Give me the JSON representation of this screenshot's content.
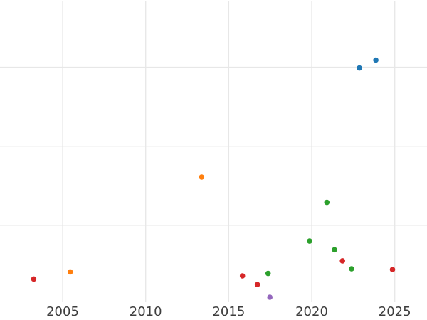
{
  "chart_data": {
    "type": "scatter",
    "title": "",
    "subtitle": "",
    "xlabel": "",
    "ylabel": "",
    "x_tick_labels": [
      "2005",
      "2010",
      "2015",
      "2020",
      "2025"
    ],
    "x_ticks": [
      2005,
      2010,
      2015,
      2020,
      2025
    ],
    "y_gridline_values": [
      1,
      2,
      3
    ],
    "y_tick_labels_visible": false,
    "xlim": [
      2001.23,
      2026.94
    ],
    "ylim": [
      0,
      3.85
    ],
    "grid": true,
    "legend_position": "none",
    "colors": {
      "background": "#ffffff",
      "gridline": "#e7e7e7",
      "tick_label": "#3d3d3d",
      "series_blue": "#1f77b4",
      "series_orange": "#ff7f0e",
      "series_green": "#2ca02c",
      "series_red": "#d62728",
      "series_purple": "#9467bd"
    },
    "marker": {
      "shape": "circle",
      "radius_px": 3.8
    },
    "series": [
      {
        "name": "blue",
        "color": "#1f77b4",
        "points": [
          {
            "x": 2022.87,
            "y": 2.99
          },
          {
            "x": 2023.86,
            "y": 3.09
          }
        ]
      },
      {
        "name": "orange",
        "color": "#ff7f0e",
        "points": [
          {
            "x": 2005.46,
            "y": 0.41
          },
          {
            "x": 2013.37,
            "y": 1.61
          }
        ]
      },
      {
        "name": "green",
        "color": "#2ca02c",
        "points": [
          {
            "x": 2017.37,
            "y": 0.39
          },
          {
            "x": 2019.87,
            "y": 0.8
          },
          {
            "x": 2020.91,
            "y": 1.29
          },
          {
            "x": 2021.37,
            "y": 0.69
          },
          {
            "x": 2022.4,
            "y": 0.45
          }
        ]
      },
      {
        "name": "red",
        "color": "#d62728",
        "points": [
          {
            "x": 2003.26,
            "y": 0.32
          },
          {
            "x": 2015.83,
            "y": 0.36
          },
          {
            "x": 2016.73,
            "y": 0.25
          },
          {
            "x": 2021.85,
            "y": 0.55
          },
          {
            "x": 2024.86,
            "y": 0.44
          }
        ]
      },
      {
        "name": "purple",
        "color": "#9467bd",
        "points": [
          {
            "x": 2017.48,
            "y": 0.09
          }
        ]
      }
    ]
  }
}
